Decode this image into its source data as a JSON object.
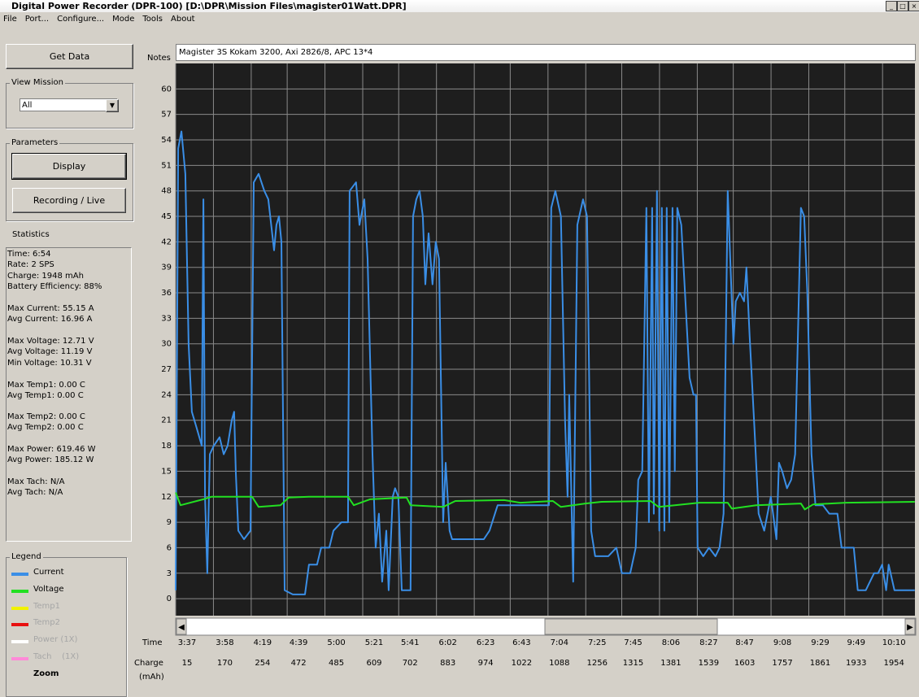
{
  "window": {
    "title": "Digital Power Recorder (DPR-100) [D:\\DPR\\Mission Files\\magister01Watt.DPR]",
    "menu": [
      "File",
      "Port...",
      "Configure...",
      "Mode",
      "Tools",
      "About"
    ]
  },
  "sidebar": {
    "get_data": "Get Data",
    "view_mission": {
      "label": "View Mission",
      "value": "All"
    },
    "parameters": {
      "label": "Parameters",
      "buttons": [
        "Display",
        "Recording / Live"
      ]
    },
    "statistics": {
      "label": "Statistics",
      "groups": [
        [
          "Time: 6:54",
          "Rate: 2 SPS",
          "Charge: 1948 mAh",
          "Battery Efficiency: 88%"
        ],
        [
          "Max Current: 55.15 A",
          "Avg Current: 16.96 A"
        ],
        [
          "Max Voltage: 12.71 V",
          "Avg Voltage: 11.19 V",
          "Min Voltage: 10.31 V"
        ],
        [
          "Max Temp1: 0.00 C",
          "Avg Temp1: 0.00 C"
        ],
        [
          "Max Temp2: 0.00 C",
          "Avg Temp2: 0.00 C"
        ],
        [
          "Max Power: 619.46 W",
          "Avg Power: 185.12 W"
        ],
        [
          "Max Tach: N/A",
          "Avg Tach: N/A"
        ]
      ]
    },
    "legend": {
      "label": "Legend",
      "items": [
        {
          "name": "Temp1",
          "color": "#f2f200"
        },
        {
          "name": "Temp2",
          "color": "#e81010"
        },
        {
          "name": "Power (1X)",
          "color": "#ffffff"
        },
        {
          "name": "Tach    (1X)",
          "color": "#ff8ad8"
        }
      ],
      "zoom": "Zoom"
    }
  },
  "notes": {
    "label": "Notes",
    "value": "Magister 3S Kokam 3200, Axi 2826/8, APC 13*4"
  },
  "chart_data": {
    "type": "line",
    "grid": true,
    "xlim": [
      217,
      628
    ],
    "ylim": [
      -2,
      63
    ],
    "yticks": [
      0,
      3,
      6,
      9,
      12,
      15,
      18,
      21,
      24,
      27,
      30,
      33,
      36,
      39,
      42,
      45,
      48,
      51,
      54,
      57,
      60
    ],
    "time_label": "Time",
    "xticks": [
      {
        "value": 217,
        "label": "3:37"
      },
      {
        "value": 238,
        "label": "3:58"
      },
      {
        "value": 259,
        "label": "4:19"
      },
      {
        "value": 279,
        "label": "4:39"
      },
      {
        "value": 300,
        "label": "5:00"
      },
      {
        "value": 321,
        "label": "5:21"
      },
      {
        "value": 341,
        "label": "5:41"
      },
      {
        "value": 362,
        "label": "6:02"
      },
      {
        "value": 383,
        "label": "6:23"
      },
      {
        "value": 403,
        "label": "6:43"
      },
      {
        "value": 424,
        "label": "7:04"
      },
      {
        "value": 445,
        "label": "7:25"
      },
      {
        "value": 465,
        "label": "7:45"
      },
      {
        "value": 486,
        "label": "8:06"
      },
      {
        "value": 507,
        "label": "8:27"
      },
      {
        "value": 527,
        "label": "8:47"
      },
      {
        "value": 548,
        "label": "9:08"
      },
      {
        "value": 569,
        "label": "9:29"
      },
      {
        "value": 589,
        "label": "9:49"
      },
      {
        "value": 610,
        "label": "10:10"
      }
    ],
    "charge_label": "Charge",
    "charge_unit": "(mAh)",
    "charge": [
      15,
      170,
      254,
      472,
      485,
      609,
      702,
      883,
      974,
      1022,
      1088,
      1256,
      1315,
      1381,
      1539,
      1603,
      1757,
      1861,
      1933,
      1954
    ],
    "series": [
      {
        "name": "Current",
        "color": "#3a8ee6",
        "x": [
          217,
          218.4,
          220.2,
          222.4,
          224.2,
          226,
          228.8,
          231.5,
          232.4,
          233.3,
          234.6,
          236,
          238.2,
          241.4,
          243.7,
          245.9,
          248.2,
          249.5,
          250.4,
          251.8,
          255,
          258.6,
          260.4,
          263.1,
          266.3,
          268.5,
          271.7,
          273,
          274.4,
          275.8,
          277.6,
          282.1,
          288.9,
          291.1,
          295.6,
          297.9,
          302.4,
          304.7,
          309.2,
          312.8,
          313.7,
          317.3,
          319.2,
          321.9,
          323.7,
          326.4,
          328.2,
          330,
          331.8,
          334.1,
          335.4,
          337.7,
          339,
          340.8,
          342.7,
          347.6,
          349,
          350.8,
          352.6,
          354.4,
          355.8,
          357.6,
          359.8,
          361.6,
          363.4,
          365.7,
          367.1,
          369.3,
          370.7,
          377,
          381.5,
          388.3,
          391.5,
          396,
          401.9,
          408.6,
          415.4,
          424.5,
          425.8,
          428.1,
          431.2,
          433.5,
          434.9,
          435.8,
          438,
          440.3,
          443.5,
          445.7,
          448,
          450.2,
          457.5,
          462,
          465.1,
          469.7,
          472.8,
          474.2,
          476.4,
          478.7,
          480.1,
          481.9,
          482.8,
          484.6,
          485.9,
          487.3,
          488.7,
          490,
          491.4,
          493.2,
          494.5,
          495.9,
          498.1,
          499.9,
          502.7,
          504.9,
          506.3,
          507.2,
          510.3,
          513.5,
          517.1,
          519.4,
          521.6,
          523.9,
          525.3,
          527.1,
          528.4,
          530.7,
          533,
          534.3,
          536.1,
          538.8,
          541.1,
          544.2,
          547.9,
          551,
          552.4,
          554.2,
          556.9,
          559.2,
          561.4,
          564.6,
          566.4,
          568.2,
          570.5,
          572.7,
          576.8,
          580.4,
          584.9,
          587.2,
          594,
          596.2,
          600.7,
          603,
          605.3,
          607.5,
          609.8,
          612,
          613.4,
          616.6,
          627.9
        ],
        "values": [
          1,
          53,
          55,
          50,
          30,
          22,
          20,
          18,
          47,
          12,
          3,
          17,
          18,
          19,
          17,
          18,
          21,
          22,
          15,
          8,
          7,
          8,
          49,
          50,
          48,
          47,
          41,
          44,
          45,
          42,
          1,
          0.5,
          0.5,
          4,
          4,
          6,
          6,
          8,
          9,
          9,
          48,
          49,
          44,
          47,
          40,
          17,
          6,
          10,
          2,
          8,
          1,
          12,
          13,
          12,
          1,
          1,
          45,
          47,
          48,
          45,
          37,
          43,
          37,
          42,
          40,
          9,
          16,
          8,
          7,
          7,
          7,
          7,
          8,
          11,
          11,
          11,
          11,
          11,
          46,
          48,
          45,
          21,
          12,
          24,
          2,
          44,
          47,
          45,
          8,
          5,
          5,
          6,
          3,
          3,
          6,
          14,
          15,
          46,
          9,
          46,
          10,
          48,
          8,
          46,
          8,
          46,
          9,
          46,
          15,
          46,
          44,
          37,
          26,
          24,
          24,
          6,
          5,
          6,
          5,
          6,
          10,
          48,
          40,
          30,
          35,
          36,
          35,
          39,
          31,
          20,
          10,
          8,
          12,
          7,
          16,
          15,
          13,
          14,
          17,
          46,
          45,
          36,
          17,
          11,
          11,
          10,
          10,
          6,
          6,
          1,
          1,
          2,
          3,
          3,
          4,
          1,
          4,
          1,
          1
        ]
      },
      {
        "name": "Voltage",
        "color": "#22e022",
        "x": [
          217,
          219.7,
          232.4,
          236.9,
          259.5,
          263.1,
          275.3,
          279.8,
          291.1,
          312.8,
          316,
          325,
          345.4,
          347.6,
          365.7,
          372.5,
          399.6,
          408.6,
          426.7,
          431.2,
          444.8,
          453.8,
          481,
          485.5,
          494.5,
          508.1,
          523.9,
          526.2,
          539.7,
          564.6,
          566.8,
          571.4,
          589.4,
          627.9
        ],
        "values": [
          12.5,
          11,
          11.7,
          12,
          12,
          10.8,
          11,
          11.9,
          12,
          12,
          11,
          11.7,
          11.9,
          11,
          10.8,
          11.5,
          11.6,
          11.3,
          11.5,
          10.8,
          11.2,
          11.4,
          11.5,
          10.8,
          11,
          11.3,
          11.3,
          10.6,
          11,
          11.2,
          10.5,
          11.1,
          11.3,
          11.4
        ]
      }
    ]
  }
}
